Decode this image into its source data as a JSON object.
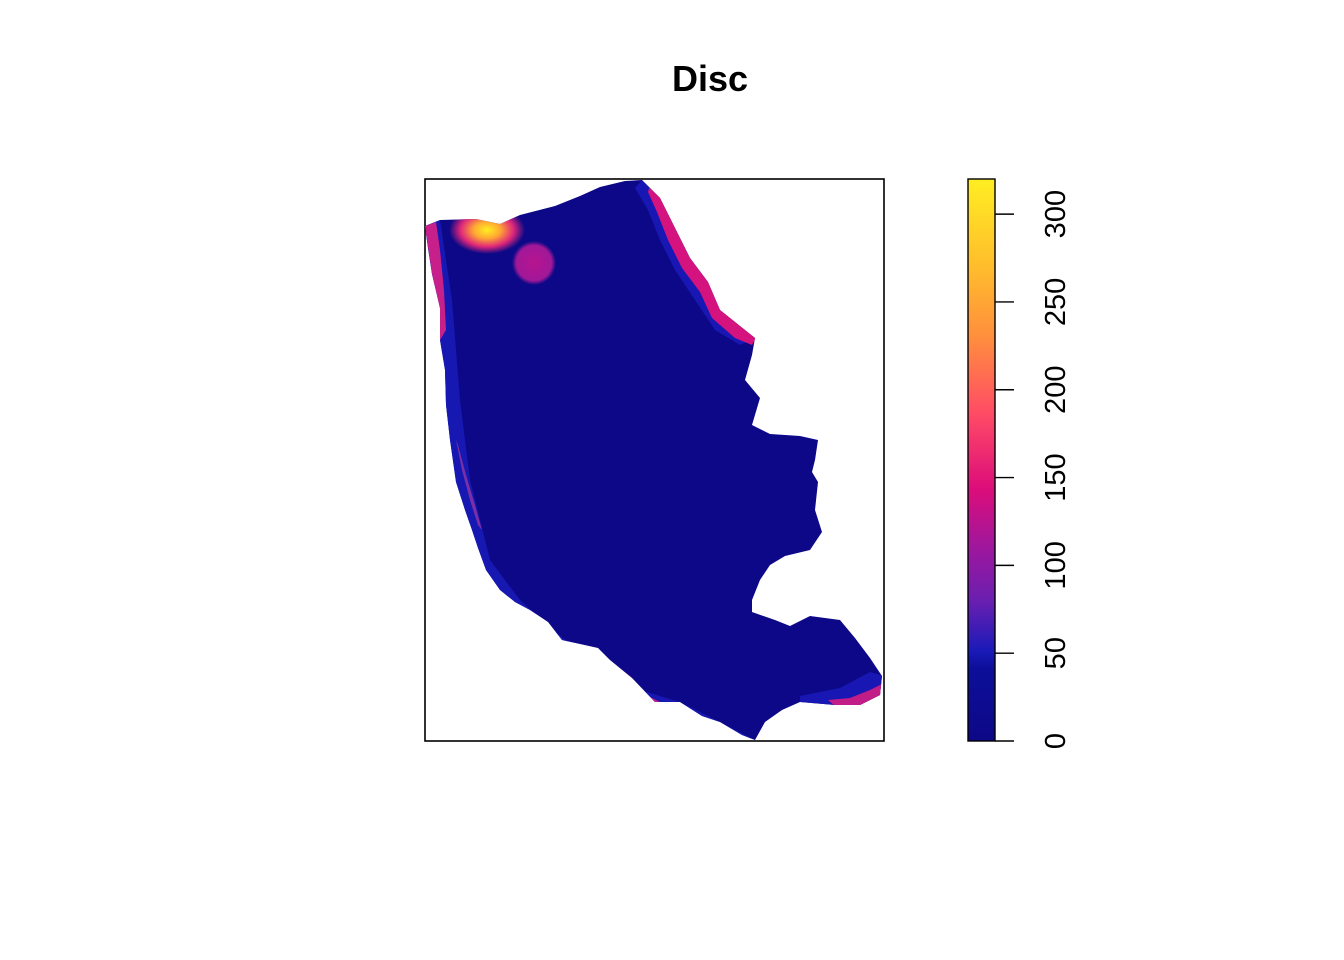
{
  "title": "Disc",
  "legend": {
    "ticks": [
      "0",
      "50",
      "100",
      "150",
      "200",
      "250",
      "300"
    ],
    "tick_values": [
      0,
      50,
      100,
      150,
      200,
      250,
      300
    ],
    "min": 0,
    "max": 320
  },
  "colors": {
    "low": "#0d0887",
    "mid_low": "#1a1ab8",
    "mid": "#7b2fa6",
    "mid_high": "#e0267a",
    "high_mid": "#ff5b5b",
    "high": "#ffa832",
    "top": "#ffee22",
    "frame": "#000000"
  },
  "colormap": [
    "#0d0887",
    "#0e1a9e",
    "#3a1fb6",
    "#6a1fb0",
    "#9c179e",
    "#cc2187",
    "#ea3b73",
    "#ff5a5a",
    "#ff7e43",
    "#ffa632",
    "#ffcc2a",
    "#ffee22"
  ]
}
